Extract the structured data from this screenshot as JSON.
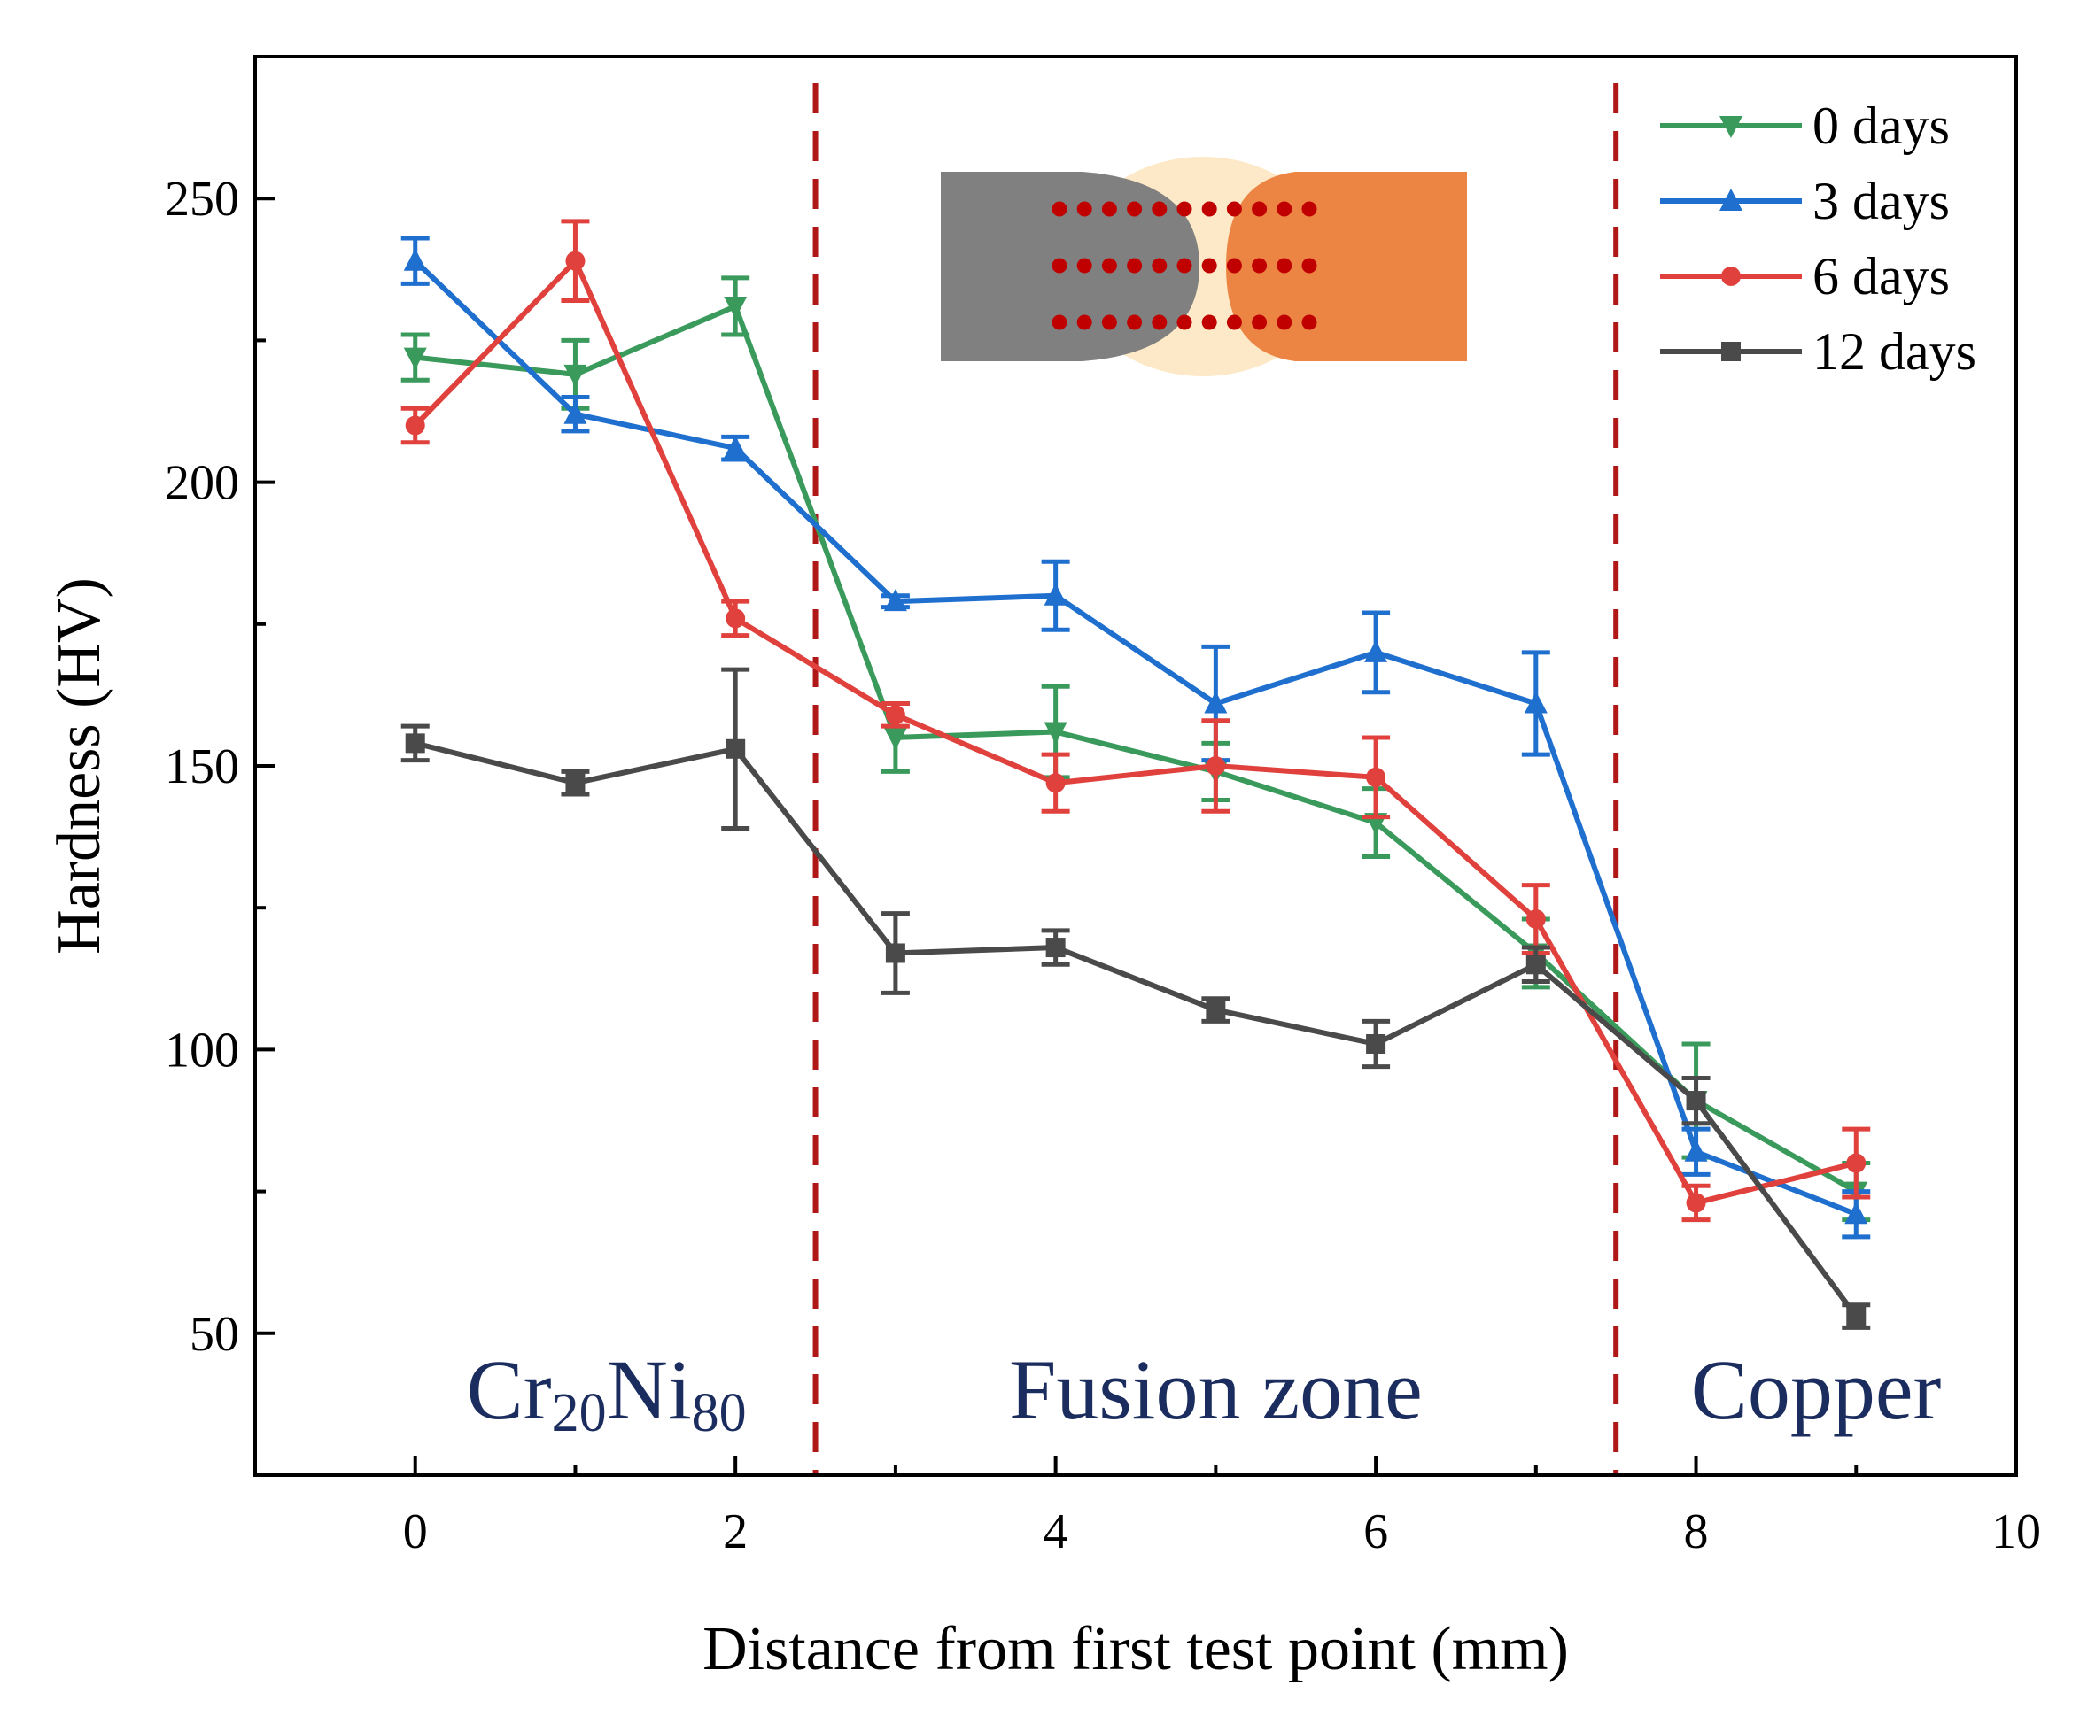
{
  "chart_data": {
    "type": "line",
    "title": "",
    "xlabel": "Distance from first test point (mm)",
    "ylabel": "Hardness (HV)",
    "xlim": [
      -1,
      10
    ],
    "ylim": [
      25,
      275
    ],
    "xticks": [
      0,
      2,
      4,
      6,
      8,
      10
    ],
    "yticks": [
      50,
      100,
      150,
      200,
      250
    ],
    "x": [
      0,
      1,
      2,
      3,
      4,
      5,
      6,
      7,
      8,
      9
    ],
    "series": [
      {
        "name": "0 days",
        "color": "#3a9a5b",
        "marker": "triangle-down",
        "values": [
          222,
          219,
          231,
          155,
          156,
          149,
          140,
          117,
          91,
          75
        ],
        "errors": [
          4,
          6,
          5,
          6,
          8,
          5,
          6,
          6,
          10,
          5
        ]
      },
      {
        "name": "3 days",
        "color": "#1f6fcf",
        "marker": "triangle-up",
        "values": [
          239,
          212,
          206,
          179,
          180,
          161,
          170,
          161,
          82,
          71
        ],
        "errors": [
          4,
          3,
          2,
          1,
          6,
          10,
          7,
          9,
          4,
          4
        ]
      },
      {
        "name": "6 days",
        "color": "#e0413c",
        "marker": "circle",
        "values": [
          210,
          239,
          176,
          159,
          147,
          150,
          148,
          123,
          73,
          80
        ],
        "errors": [
          3,
          7,
          3,
          2,
          5,
          8,
          7,
          6,
          3,
          6
        ]
      },
      {
        "name": "12 days",
        "color": "#4a4a4a",
        "marker": "square",
        "values": [
          154,
          147,
          153,
          117,
          118,
          107,
          101,
          115,
          91,
          53
        ],
        "errors": [
          3,
          2,
          14,
          7,
          3,
          2,
          4,
          3,
          4,
          2
        ]
      }
    ],
    "boundaries": [
      2.5,
      7.5
    ],
    "boundary_color": "#b01818",
    "region_labels": [
      {
        "id": "region-cr-ni",
        "base": "Cr",
        "sub1": "20",
        "mid": "Ni",
        "sub2": "80",
        "x": 1.25
      },
      {
        "id": "region-fusion",
        "text": "Fusion zone",
        "x": 5
      },
      {
        "id": "region-copper",
        "text": "Copper",
        "x": 8.75
      }
    ],
    "region_label_color": "#1b2d5e",
    "legend_position": "top-right",
    "inset": {
      "description_colors": {
        "left": "#808080",
        "fusion": "#fde9c7",
        "right": "#ec8543",
        "dots": "#c00000"
      },
      "dot_rows": 3,
      "dot_cols": 11
    }
  }
}
